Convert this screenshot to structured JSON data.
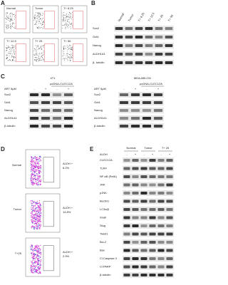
{
  "panel_a": {
    "label": "A",
    "plots": [
      "Normal",
      "Tumor",
      "T+ 6.25",
      "T+ 12.5",
      "T+ 25",
      "T+ 50"
    ]
  },
  "panel_b": {
    "label": "B",
    "columns": [
      "Normal",
      "Tumor",
      "T+ 6.25",
      "T+ 12.5",
      "T+ 25",
      "T+ 50"
    ],
    "rows": [
      "Sox2",
      "Oct4",
      "Nanog",
      "ALDH1A1",
      "β- tubulin"
    ]
  },
  "panel_c": {
    "label": "C",
    "blots": [
      {
        "title": "4T1",
        "treatment": "ART 5μM",
        "signs": [
          "-",
          "+",
          "-",
          "+"
        ],
        "construct": "pcDNA-CLEC12A",
        "rows": [
          "Sox2",
          "Oct4",
          "Nanog",
          "ALDH1A1",
          "β-tubulin"
        ]
      },
      {
        "title": "MDA-MB-231",
        "treatment": "ART 5μM",
        "signs": [
          "-",
          "+",
          "-",
          "+"
        ],
        "construct": "pcDNA-CLEC12A",
        "rows": [
          "Sox2",
          "Oct4",
          "Nanog",
          "ALDH1A1",
          "β-tubulin"
        ]
      }
    ]
  },
  "panel_d": {
    "label": "D",
    "plots": [
      {
        "name": "Normal",
        "gate": "ALDH +",
        "percent": "8.2%"
      },
      {
        "name": "Tumor",
        "gate": "ALDH +",
        "percent": "14.8%"
      },
      {
        "name": "T+25",
        "gate": "ALDH +",
        "percent": "2.9%"
      }
    ]
  },
  "panel_e": {
    "label": "E",
    "groups": [
      "Normal",
      "Tumor",
      "T+ 25"
    ],
    "treatment": "ALDH",
    "signs": [
      "-",
      "+",
      "-",
      "+",
      "-",
      "+"
    ],
    "rows": [
      "CLEC12A",
      "TLR4",
      "NF-κB (RelA)",
      "JNK",
      "pJNK",
      "Beclin1",
      "LC3a/β",
      "Snail",
      "Slug",
      "Twist1",
      "Bcl-2",
      "Bax",
      "Cl.Caspase 3",
      "Cl.PARP",
      "β-tubulin"
    ]
  }
}
